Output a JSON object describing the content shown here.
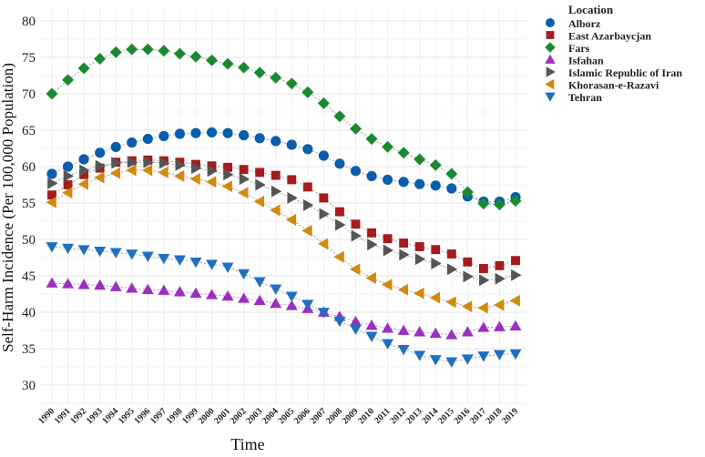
{
  "chart_data": {
    "type": "line",
    "xlabel": "Time",
    "ylabel": "Self-Harm Incidence (Per 100,000 Population)",
    "ylim": [
      27,
      82
    ],
    "yticks": [
      30,
      35,
      40,
      45,
      50,
      55,
      60,
      65,
      70,
      75,
      80
    ],
    "grid": true,
    "legend_title": "Location",
    "legend_position": "top-right",
    "x": [
      1990,
      1991,
      1992,
      1993,
      1994,
      1995,
      1996,
      1997,
      1998,
      1999,
      2000,
      2001,
      2002,
      2003,
      2004,
      2005,
      2006,
      2007,
      2008,
      2009,
      2010,
      2011,
      2012,
      2013,
      2014,
      2015,
      2016,
      2017,
      2018,
      2019
    ],
    "series": [
      {
        "name": "Alborz",
        "marker": "circle",
        "color": "#0b5cad",
        "values": [
          59.0,
          60.0,
          61.0,
          61.9,
          62.7,
          63.3,
          63.8,
          64.2,
          64.5,
          64.6,
          64.7,
          64.6,
          64.3,
          63.9,
          63.5,
          63.0,
          62.4,
          61.5,
          60.4,
          59.4,
          58.7,
          58.2,
          57.9,
          57.6,
          57.4,
          57.0,
          55.9,
          55.2,
          55.2,
          55.8
        ]
      },
      {
        "name": "East Azarbaycjan",
        "marker": "square",
        "color": "#a51c1c",
        "values": [
          56.1,
          57.5,
          58.9,
          59.8,
          60.6,
          60.8,
          60.9,
          60.8,
          60.6,
          60.3,
          60.1,
          59.9,
          59.6,
          59.2,
          58.8,
          58.2,
          57.2,
          55.7,
          53.8,
          52.1,
          50.9,
          50.1,
          49.5,
          49.0,
          48.6,
          48.0,
          46.9,
          46.0,
          46.4,
          47.1
        ]
      },
      {
        "name": "Fars",
        "marker": "diamond",
        "color": "#1a8a2e",
        "values": [
          70.0,
          71.9,
          73.5,
          74.8,
          75.7,
          76.1,
          76.1,
          75.9,
          75.5,
          75.1,
          74.6,
          74.1,
          73.6,
          72.9,
          72.2,
          71.4,
          70.2,
          68.7,
          66.9,
          65.2,
          63.8,
          62.7,
          61.9,
          61.0,
          60.2,
          59.0,
          56.5,
          54.9,
          54.8,
          55.3
        ]
      },
      {
        "name": "Isfahan",
        "marker": "triangle-up",
        "color": "#9b2fc0",
        "values": [
          44.0,
          43.9,
          43.8,
          43.7,
          43.5,
          43.3,
          43.1,
          43.0,
          42.8,
          42.6,
          42.4,
          42.2,
          41.9,
          41.6,
          41.2,
          40.9,
          40.5,
          40.0,
          39.4,
          38.7,
          38.2,
          37.8,
          37.5,
          37.3,
          37.1,
          36.9,
          37.3,
          37.9,
          38.0,
          38.1
        ]
      },
      {
        "name": "Islamic Republic of Iran",
        "marker": "triangle-right",
        "color": "#555555",
        "values": [
          57.7,
          58.7,
          59.5,
          60.1,
          60.5,
          60.6,
          60.6,
          60.5,
          60.2,
          59.8,
          59.4,
          58.9,
          58.3,
          57.5,
          56.6,
          55.7,
          54.7,
          53.5,
          52.0,
          50.5,
          49.3,
          48.5,
          47.9,
          47.3,
          46.7,
          45.9,
          44.9,
          44.4,
          44.6,
          45.1
        ]
      },
      {
        "name": "Khorasan-e-Razavi",
        "marker": "triangle-left",
        "color": "#d4890e",
        "values": [
          55.1,
          56.4,
          57.6,
          58.5,
          59.1,
          59.5,
          59.5,
          59.2,
          58.7,
          58.3,
          57.9,
          57.3,
          56.4,
          55.2,
          54.0,
          52.7,
          51.2,
          49.4,
          47.6,
          45.9,
          44.7,
          43.8,
          43.1,
          42.6,
          42.0,
          41.4,
          40.8,
          40.6,
          41.0,
          41.6
        ]
      },
      {
        "name": "Tehran",
        "marker": "triangle-down",
        "color": "#1f6fc0",
        "values": [
          49.0,
          48.8,
          48.6,
          48.4,
          48.2,
          48.0,
          47.7,
          47.4,
          47.2,
          46.9,
          46.6,
          46.2,
          45.3,
          44.2,
          43.2,
          42.2,
          41.1,
          40.0,
          38.8,
          37.7,
          36.7,
          35.7,
          34.9,
          34.1,
          33.5,
          33.2,
          33.6,
          34.0,
          34.2,
          34.3
        ]
      }
    ]
  }
}
